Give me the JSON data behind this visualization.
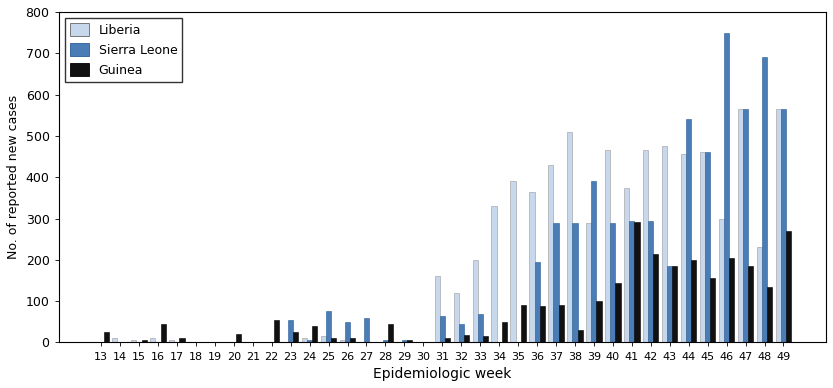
{
  "weeks": [
    13,
    14,
    15,
    16,
    17,
    18,
    19,
    20,
    21,
    22,
    23,
    24,
    25,
    26,
    27,
    28,
    29,
    30,
    31,
    32,
    33,
    34,
    35,
    36,
    37,
    38,
    39,
    40,
    41,
    42,
    43,
    44,
    45,
    46,
    47,
    48,
    49
  ],
  "liberia": [
    0,
    10,
    5,
    10,
    5,
    0,
    0,
    0,
    0,
    0,
    0,
    12,
    15,
    5,
    0,
    0,
    0,
    0,
    160,
    120,
    200,
    330,
    390,
    365,
    430,
    509,
    290,
    465,
    375,
    465,
    475,
    455,
    460,
    300,
    565,
    230,
    565
  ],
  "sierra_leone": [
    0,
    0,
    0,
    0,
    0,
    0,
    0,
    0,
    0,
    0,
    55,
    5,
    75,
    50,
    60,
    5,
    5,
    0,
    65,
    45,
    70,
    0,
    0,
    195,
    290,
    290,
    390,
    290,
    295,
    295,
    185,
    540,
    460,
    748,
    565,
    690,
    565
  ],
  "guinea": [
    25,
    0,
    5,
    45,
    12,
    0,
    0,
    20,
    0,
    55,
    25,
    40,
    12,
    10,
    0,
    45,
    5,
    0,
    12,
    18,
    15,
    50,
    90,
    88,
    90,
    30,
    100,
    145,
    292,
    215,
    185,
    200,
    155,
    205,
    185,
    135,
    270
  ],
  "liberia_color": "#c8d8ec",
  "sierra_leone_color": "#4a7db5",
  "guinea_color": "#111111",
  "liberia_edge": "#999999",
  "sl_edge": "#2a5d95",
  "guinea_edge": "#000000",
  "xlabel": "Epidemiologic week",
  "ylabel": "No. of reported new cases",
  "ylim": [
    0,
    800
  ],
  "yticks": [
    0,
    100,
    200,
    300,
    400,
    500,
    600,
    700,
    800
  ],
  "bar_width": 0.27,
  "figsize": [
    8.33,
    3.88
  ],
  "dpi": 100
}
